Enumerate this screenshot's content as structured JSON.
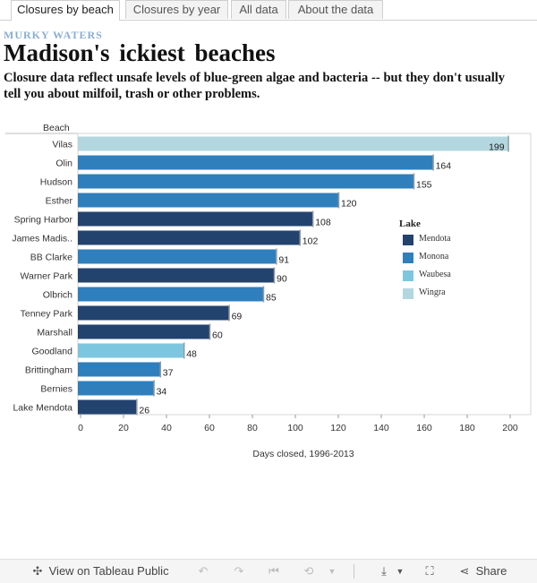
{
  "tabs": [
    {
      "label": "Closures by beach",
      "active": true
    },
    {
      "label": "Closures by year",
      "active": false
    },
    {
      "label": "All data",
      "active": false
    },
    {
      "label": "About the data",
      "active": false
    }
  ],
  "header": {
    "kicker": "MURKY WATERS",
    "title": "Madison's ickiest beaches",
    "subtitle": "Closure data reflect unsafe levels of blue-green algae and bacteria -- but they don't usually tell you about milfoil, trash or other problems."
  },
  "chart_data": {
    "type": "bar",
    "orientation": "horizontal",
    "ylabel": "Beach",
    "xlabel": "Days closed, 1996-2013",
    "xlim": [
      0,
      200
    ],
    "xticks": [
      0,
      20,
      40,
      60,
      80,
      100,
      120,
      140,
      160,
      180,
      200
    ],
    "grid": false,
    "legend_placement": "right",
    "legend": {
      "title": "Lake",
      "entries": [
        {
          "name": "Mendota",
          "color": "#23436f"
        },
        {
          "name": "Monona",
          "color": "#2f7fbd"
        },
        {
          "name": "Waubesa",
          "color": "#7cc6df"
        },
        {
          "name": "Wingra",
          "color": "#b3d7df"
        }
      ]
    },
    "categories": [
      "Vilas",
      "Olin",
      "Hudson",
      "Esther",
      "Spring Harbor",
      "James Madis..",
      "BB Clarke",
      "Warner Park",
      "Olbrich",
      "Tenney Park",
      "Marshall",
      "Goodland",
      "Brittingham",
      "Bernies",
      "Lake Mendota"
    ],
    "values": [
      199,
      164,
      155,
      120,
      108,
      102,
      91,
      90,
      85,
      69,
      60,
      48,
      37,
      34,
      26
    ],
    "lakes": [
      "Wingra",
      "Monona",
      "Monona",
      "Monona",
      "Mendota",
      "Mendota",
      "Monona",
      "Mendota",
      "Monona",
      "Mendota",
      "Mendota",
      "Waubesa",
      "Monona",
      "Monona",
      "Mendota"
    ]
  },
  "toolbar": {
    "view_label": "View on Tableau Public",
    "share_label": "Share",
    "icons": [
      "tableau-icon",
      "undo-icon",
      "redo-icon",
      "revert-icon",
      "refresh-icon",
      "download-icon",
      "fullscreen-icon",
      "share-icon"
    ]
  }
}
